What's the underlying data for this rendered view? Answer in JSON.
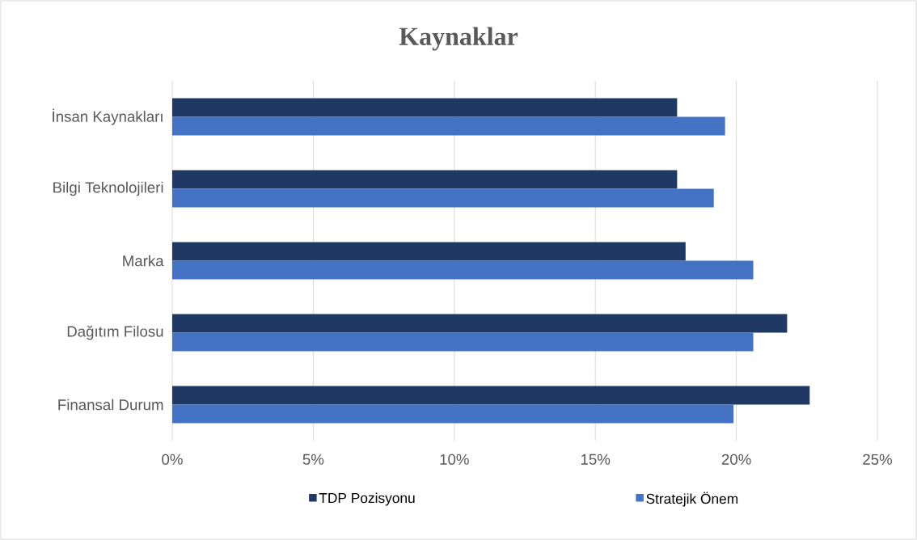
{
  "chart_data": {
    "type": "bar",
    "orientation": "horizontal",
    "title": "Kaynaklar",
    "categories": [
      "İnsan Kaynakları",
      "Bilgi Teknolojileri",
      "Marka",
      "Dağıtım Filosu",
      "Finansal Durum"
    ],
    "series": [
      {
        "name": "TDP Pozisyonu",
        "color": "#203864",
        "values": [
          17.9,
          17.9,
          18.2,
          21.8,
          22.6
        ]
      },
      {
        "name": "Stratejik Önem",
        "color": "#4472c4",
        "values": [
          19.6,
          19.2,
          20.6,
          20.6,
          19.9
        ]
      }
    ],
    "xlim": [
      0,
      25
    ],
    "xticks": [
      {
        "value": 0,
        "label": "0%"
      },
      {
        "value": 5,
        "label": "5%"
      },
      {
        "value": 10,
        "label": "10%"
      },
      {
        "value": 15,
        "label": "15%"
      },
      {
        "value": 20,
        "label": "20%"
      },
      {
        "value": 25,
        "label": "25%"
      }
    ],
    "grid": "x",
    "legend": "bottom"
  }
}
